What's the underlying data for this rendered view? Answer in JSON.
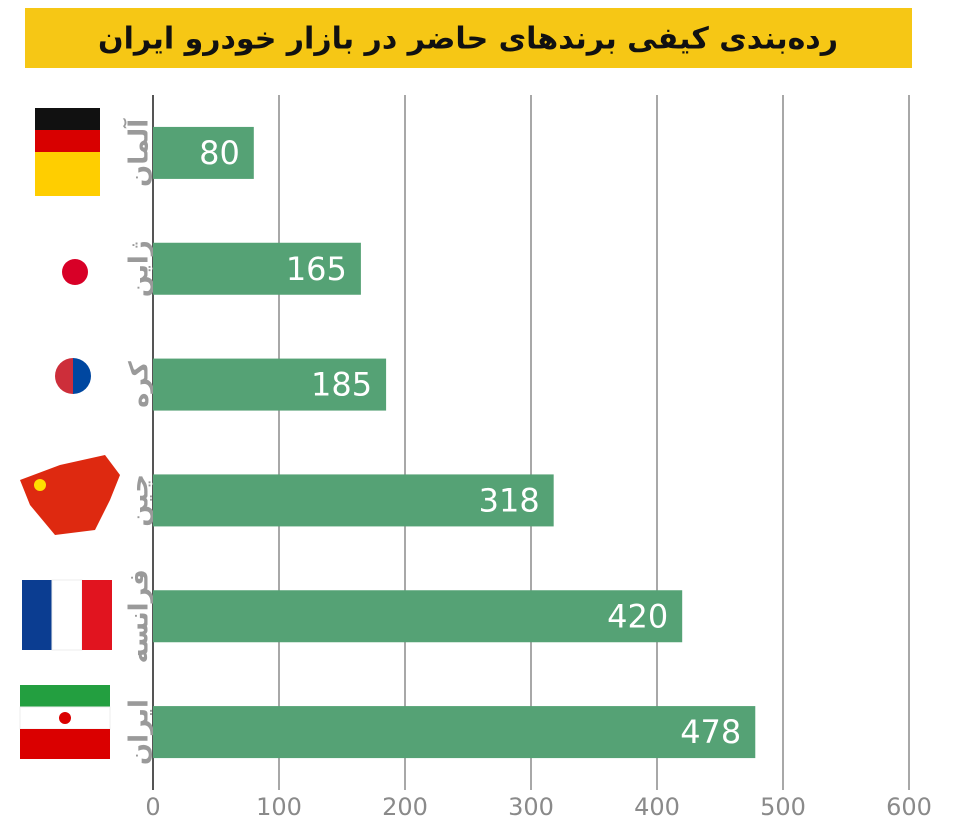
{
  "chart_data": {
    "type": "bar",
    "orientation": "horizontal",
    "title": "رده‌بندی کیفی برندهای حاضر در بازار خودرو ایران",
    "categories": [
      "آلمان",
      "ژاپن",
      "کره",
      "چین",
      "فرانسه",
      "ایران"
    ],
    "values": [
      80,
      165,
      185,
      318,
      420,
      478
    ],
    "color": "#55a275",
    "xlim": [
      0,
      600
    ],
    "xticks": [
      0,
      100,
      200,
      300,
      400,
      500,
      600
    ],
    "grid": true
  }
}
